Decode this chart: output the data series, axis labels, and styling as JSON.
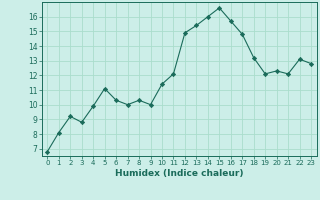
{
  "x": [
    0,
    1,
    2,
    3,
    4,
    5,
    6,
    7,
    8,
    9,
    10,
    11,
    12,
    13,
    14,
    15,
    16,
    17,
    18,
    19,
    20,
    21,
    22,
    23
  ],
  "y": [
    6.8,
    8.1,
    9.2,
    8.8,
    9.9,
    11.1,
    10.3,
    10.0,
    10.3,
    10.0,
    11.4,
    12.1,
    14.9,
    15.4,
    16.0,
    16.6,
    15.7,
    14.8,
    13.2,
    12.1,
    12.3,
    12.1,
    13.1,
    12.8
  ],
  "line_color": "#1a6b5a",
  "marker": "D",
  "marker_size": 2.2,
  "bg_color": "#cceee8",
  "grid_color": "#aaddcc",
  "xlabel": "Humidex (Indice chaleur)",
  "ylim": [
    6.5,
    17.0
  ],
  "xlim": [
    -0.5,
    23.5
  ],
  "yticks": [
    7,
    8,
    9,
    10,
    11,
    12,
    13,
    14,
    15,
    16
  ],
  "xticks": [
    0,
    1,
    2,
    3,
    4,
    5,
    6,
    7,
    8,
    9,
    10,
    11,
    12,
    13,
    14,
    15,
    16,
    17,
    18,
    19,
    20,
    21,
    22,
    23
  ],
  "tick_color": "#1a6b5a",
  "label_color": "#1a6b5a",
  "axis_color": "#1a6b5a",
  "xlabel_fontsize": 6.5,
  "xtick_fontsize": 5.0,
  "ytick_fontsize": 5.5
}
